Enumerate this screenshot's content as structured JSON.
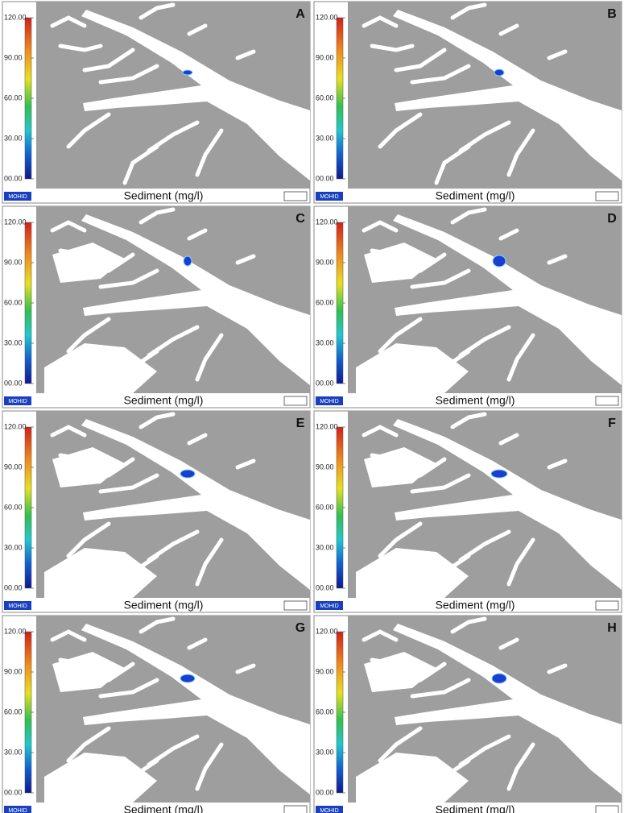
{
  "colorbar": {
    "ticks": [
      {
        "value": 120,
        "label": "120.00"
      },
      {
        "value": 90,
        "label": "90.00"
      },
      {
        "value": 60,
        "label": "60.00"
      },
      {
        "value": 30,
        "label": "30.00"
      },
      {
        "value": 0,
        "label": "00.00"
      }
    ]
  },
  "caption": "Sediment (mg/l)",
  "logo": "MOHID",
  "panels": [
    {
      "label": "A"
    },
    {
      "label": "B"
    },
    {
      "label": "C"
    },
    {
      "label": "D"
    },
    {
      "label": "E"
    },
    {
      "label": "F"
    },
    {
      "label": "G"
    },
    {
      "label": "H"
    }
  ]
}
